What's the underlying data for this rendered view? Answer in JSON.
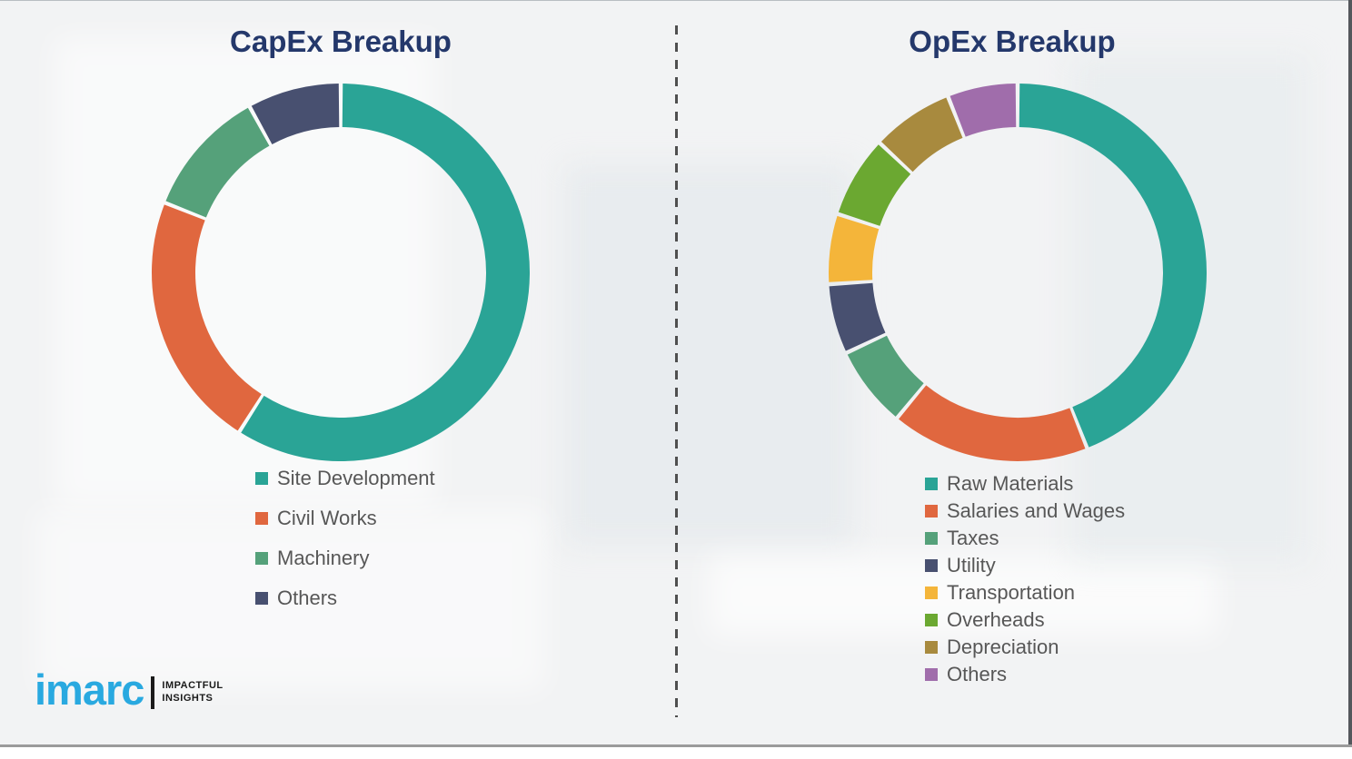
{
  "chart_data": [
    {
      "type": "pie",
      "subtype": "donut",
      "title": "CapEx Breakup",
      "labels": [
        "Site Development",
        "Civil Works",
        "Machinery",
        "Others"
      ],
      "values": [
        59,
        22,
        11,
        8
      ],
      "colors": [
        "#2aa496",
        "#e0673f",
        "#55a17a",
        "#485070"
      ],
      "values_note": "percent of ring, estimated from arc angles (no numeric labels shown)",
      "start_angle_deg": 0,
      "direction": "clockwise",
      "legend_position": "below-left"
    },
    {
      "type": "pie",
      "subtype": "donut",
      "title": "OpEx Breakup",
      "labels": [
        "Raw Materials",
        "Salaries and Wages",
        "Taxes",
        "Utility",
        "Transportation",
        "Overheads",
        "Depreciation",
        "Others"
      ],
      "values": [
        44,
        17,
        7,
        6,
        6,
        7,
        7,
        6
      ],
      "colors": [
        "#2aa496",
        "#e0673f",
        "#55a17a",
        "#485070",
        "#f4b53a",
        "#6ba831",
        "#a88a3e",
        "#a06dab"
      ],
      "values_note": "percent of ring, estimated from arc angles (no numeric labels shown)",
      "start_angle_deg": 0,
      "direction": "clockwise",
      "legend_position": "below-left"
    }
  ],
  "logo": {
    "brand": "imarc",
    "tagline_line1": "IMPACTFUL",
    "tagline_line2": "INSIGHTS",
    "brand_color": "#29a9e0"
  },
  "style": {
    "title_color": "#24386b",
    "legend_text_color": "#575757",
    "background_color": "#f2f3f4"
  }
}
